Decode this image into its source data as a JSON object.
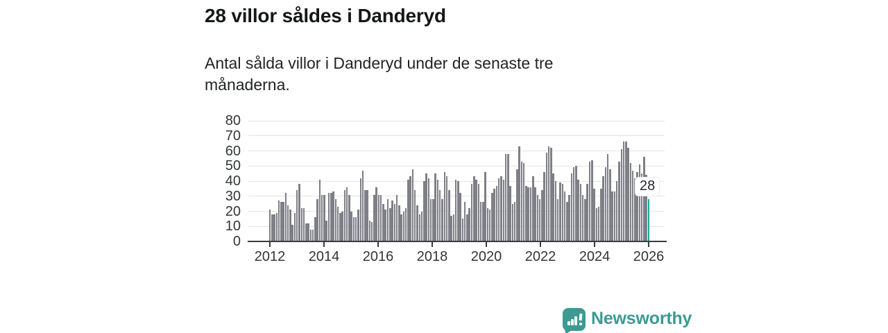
{
  "header": {
    "title": "28 villor såldes i Danderyd",
    "subtitle": "Antal sålda villor i Danderyd under de senaste tre månaderna."
  },
  "chart_data": {
    "type": "bar",
    "title": "28 villor såldes i Danderyd",
    "xlabel": "",
    "ylabel": "",
    "x_start": "2012-01",
    "x_end": "2025-12",
    "frequency": "monthly",
    "ylim": [
      0,
      80
    ],
    "grid": true,
    "yticks": [
      "0",
      "10",
      "20",
      "30",
      "40",
      "50",
      "60",
      "70",
      "80"
    ],
    "xticks": [
      "2012",
      "2014",
      "2016",
      "2018",
      "2020",
      "2022",
      "2024",
      "2026"
    ],
    "bar_color": "#7f7f87",
    "values": [
      21,
      18,
      18,
      19,
      27,
      26,
      26,
      32,
      24,
      21,
      11,
      19,
      34,
      38,
      22,
      22,
      12,
      12,
      8,
      8,
      16,
      28,
      41,
      31,
      31,
      14,
      32,
      32,
      33,
      28,
      23,
      19,
      20,
      34,
      36,
      31,
      20,
      16,
      16,
      21,
      42,
      47,
      34,
      34,
      14,
      13,
      31,
      36,
      31,
      31,
      25,
      21,
      28,
      22,
      27,
      25,
      31,
      24,
      18,
      20,
      22,
      41,
      43,
      48,
      34,
      24,
      18,
      20,
      40,
      45,
      42,
      28,
      28,
      45,
      41,
      34,
      28,
      46,
      43,
      34,
      17,
      18,
      41,
      40,
      32,
      15,
      26,
      18,
      22,
      38,
      43,
      41,
      38,
      26,
      26,
      46,
      22,
      21,
      32,
      35,
      37,
      42,
      43,
      41,
      58,
      58,
      37,
      25,
      26,
      48,
      63,
      53,
      52,
      37,
      36,
      36,
      43,
      36,
      31,
      28,
      34,
      46,
      59,
      63,
      62,
      45,
      40,
      28,
      39,
      38,
      33,
      26,
      31,
      45,
      49,
      50,
      41,
      38,
      31,
      28,
      38,
      53,
      54,
      35,
      22,
      23,
      35,
      43,
      49,
      58,
      48,
      33,
      33,
      40,
      53,
      61,
      66,
      66,
      62,
      52,
      47,
      42,
      46,
      51,
      45,
      56,
      44,
      28
    ],
    "highlight": {
      "index": 167,
      "value": 28,
      "label": "28",
      "color": "#0fa89c"
    }
  },
  "annotation": {
    "last_value_label": "28"
  },
  "footer": {
    "brand": "Newsworthy",
    "brand_color": "#3c9a92",
    "logo_icon": "bar-chart-speech-bubble-icon"
  }
}
